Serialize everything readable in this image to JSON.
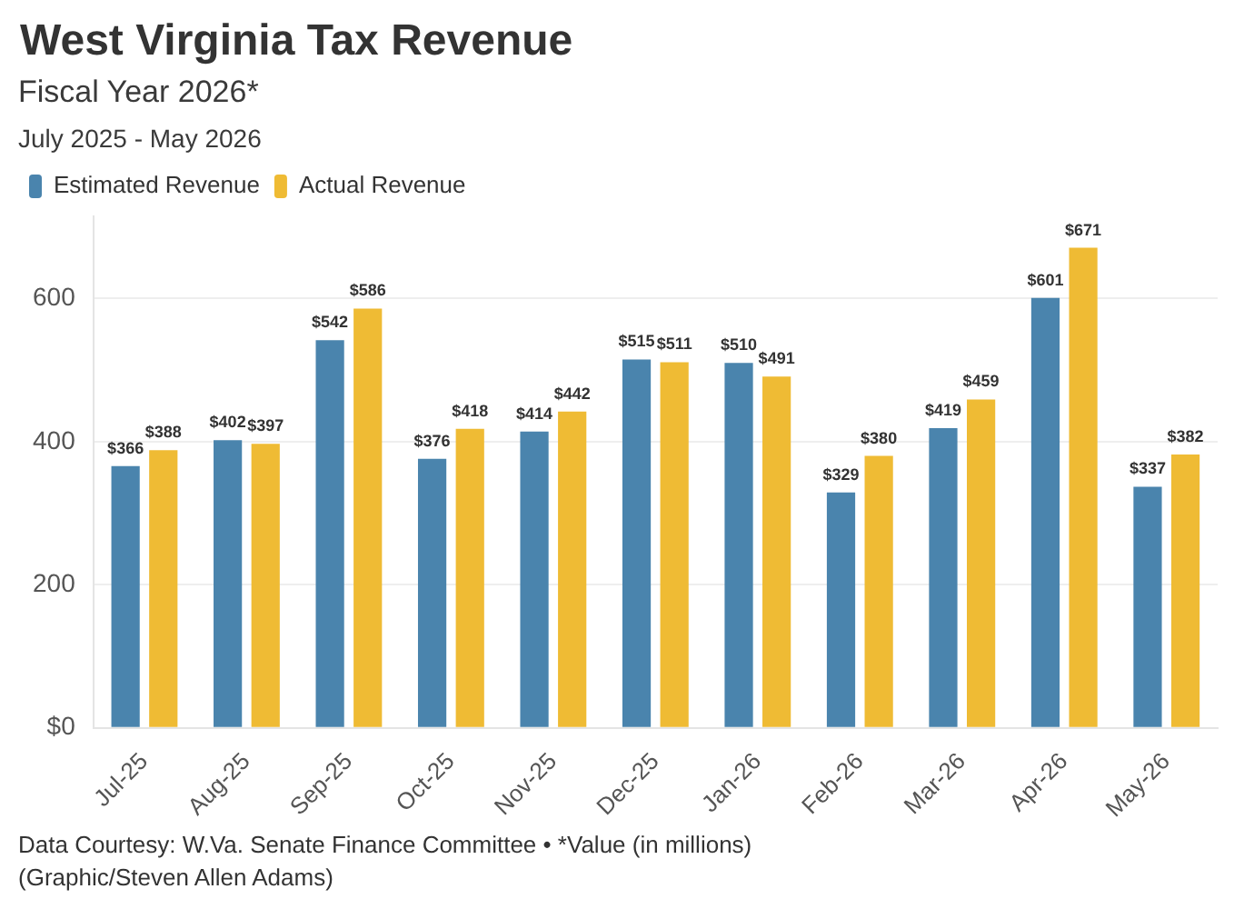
{
  "chart_data": {
    "type": "bar",
    "title": "West Virginia Tax Revenue",
    "subtitle": "Fiscal Year 2026*\nJuly 2025 - May 2026",
    "categories": [
      "Jul-25",
      "Aug-25",
      "Sep-25",
      "Oct-25",
      "Nov-25",
      "Dec-25",
      "Jan-26",
      "Feb-26",
      "Mar-26",
      "Apr-26",
      "May-26"
    ],
    "series": [
      {
        "name": "Estimated Revenue",
        "color": "#4a84ad",
        "values": [
          366,
          402,
          542,
          376,
          414,
          515,
          510,
          329,
          419,
          601,
          337
        ],
        "value_labels": [
          "$366",
          "$402",
          "$542",
          "$376",
          "$414",
          "$515",
          "$510",
          "$329",
          "$419",
          "$601",
          "$337"
        ]
      },
      {
        "name": "Actual Revenue",
        "color": "#efbb34",
        "values": [
          388,
          397,
          586,
          418,
          442,
          511,
          491,
          380,
          459,
          671,
          382
        ],
        "value_labels": [
          "$388",
          "$397",
          "$586",
          "$418",
          "$442",
          "$511",
          "$491",
          "$380",
          "$459",
          "$671",
          "$382"
        ]
      }
    ],
    "ylim": [
      0,
      715
    ],
    "yticks": [
      {
        "value": 0,
        "label": "$0"
      },
      200,
      400,
      600
    ],
    "grid": "y",
    "legend": "top left",
    "annotations": [
      "Data Courtesy: W.Va. Senate Finance Committee • *Value (in millions)",
      "(Graphic/Steven Allen Adams)"
    ]
  }
}
